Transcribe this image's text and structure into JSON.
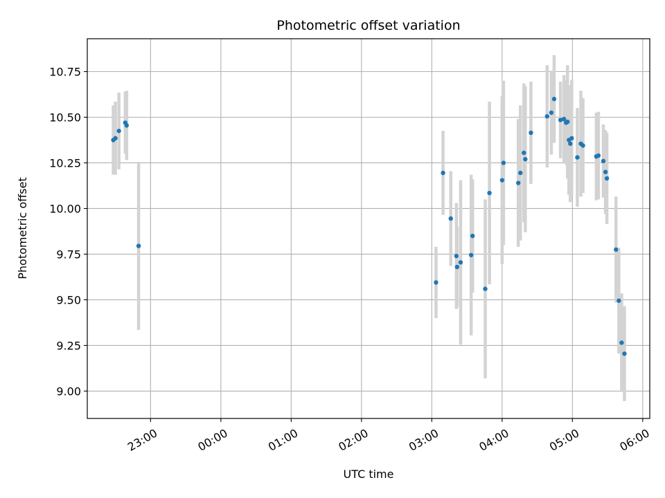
{
  "chart_data": {
    "type": "scatter",
    "title": "Photometric offset variation",
    "xlabel": "UTC time",
    "ylabel": "Photometric offset",
    "xlim_hours": [
      -1.9,
      6.1
    ],
    "ylim": [
      8.85,
      10.93
    ],
    "grid": true,
    "x_ticks": [
      {
        "value": -1.0,
        "label": "23:00"
      },
      {
        "value": 0.0,
        "label": "00:00"
      },
      {
        "value": 1.0,
        "label": "01:00"
      },
      {
        "value": 2.0,
        "label": "02:00"
      },
      {
        "value": 3.0,
        "label": "03:00"
      },
      {
        "value": 4.0,
        "label": "04:00"
      },
      {
        "value": 5.0,
        "label": "05:00"
      },
      {
        "value": 6.0,
        "label": "06:00"
      }
    ],
    "y_ticks": [
      {
        "value": 9.0,
        "label": "9.00"
      },
      {
        "value": 9.25,
        "label": "9.25"
      },
      {
        "value": 9.5,
        "label": "9.50"
      },
      {
        "value": 9.75,
        "label": "9.75"
      },
      {
        "value": 10.0,
        "label": "10.00"
      },
      {
        "value": 10.25,
        "label": "10.25"
      },
      {
        "value": 10.5,
        "label": "10.50"
      },
      {
        "value": 10.75,
        "label": "10.75"
      }
    ],
    "point_color": "#1f77b4",
    "errorbar_color": "#d3d3d3",
    "points": [
      {
        "x": -1.53,
        "y": 10.375,
        "err": 0.19
      },
      {
        "x": -1.5,
        "y": 10.385,
        "err": 0.2
      },
      {
        "x": -1.45,
        "y": 10.425,
        "err": 0.21
      },
      {
        "x": -1.36,
        "y": 10.47,
        "err": 0.17
      },
      {
        "x": -1.34,
        "y": 10.455,
        "err": 0.19
      },
      {
        "x": -1.17,
        "y": 9.795,
        "err": 0.46
      },
      {
        "x": 3.06,
        "y": 9.595,
        "err": 0.195
      },
      {
        "x": 3.16,
        "y": 10.195,
        "err": 0.23
      },
      {
        "x": 3.27,
        "y": 9.945,
        "err": 0.26
      },
      {
        "x": 3.35,
        "y": 9.74,
        "err": 0.29
      },
      {
        "x": 3.36,
        "y": 9.68,
        "err": 0.22
      },
      {
        "x": 3.41,
        "y": 9.705,
        "err": 0.45
      },
      {
        "x": 3.56,
        "y": 9.745,
        "err": 0.44
      },
      {
        "x": 3.58,
        "y": 9.85,
        "err": 0.31
      },
      {
        "x": 3.76,
        "y": 9.56,
        "err": 0.49
      },
      {
        "x": 3.82,
        "y": 10.085,
        "err": 0.5
      },
      {
        "x": 4.0,
        "y": 10.155,
        "err": 0.46
      },
      {
        "x": 4.02,
        "y": 10.25,
        "err": 0.45
      },
      {
        "x": 4.23,
        "y": 10.14,
        "err": 0.35
      },
      {
        "x": 4.26,
        "y": 10.195,
        "err": 0.37
      },
      {
        "x": 4.31,
        "y": 10.305,
        "err": 0.38
      },
      {
        "x": 4.33,
        "y": 10.27,
        "err": 0.4
      },
      {
        "x": 4.41,
        "y": 10.415,
        "err": 0.28
      },
      {
        "x": 4.64,
        "y": 10.505,
        "err": 0.28
      },
      {
        "x": 4.7,
        "y": 10.525,
        "err": 0.23
      },
      {
        "x": 4.74,
        "y": 10.6,
        "err": 0.24
      },
      {
        "x": 4.83,
        "y": 10.485,
        "err": 0.21
      },
      {
        "x": 4.88,
        "y": 10.49,
        "err": 0.24
      },
      {
        "x": 4.91,
        "y": 10.47,
        "err": 0.23
      },
      {
        "x": 4.93,
        "y": 10.475,
        "err": 0.31
      },
      {
        "x": 4.95,
        "y": 10.375,
        "err": 0.3
      },
      {
        "x": 4.97,
        "y": 10.355,
        "err": 0.32
      },
      {
        "x": 4.99,
        "y": 10.385,
        "err": 0.32
      },
      {
        "x": 5.07,
        "y": 10.28,
        "err": 0.27
      },
      {
        "x": 5.12,
        "y": 10.355,
        "err": 0.29
      },
      {
        "x": 5.15,
        "y": 10.345,
        "err": 0.26
      },
      {
        "x": 5.34,
        "y": 10.285,
        "err": 0.24
      },
      {
        "x": 5.37,
        "y": 10.29,
        "err": 0.24
      },
      {
        "x": 5.44,
        "y": 10.26,
        "err": 0.2
      },
      {
        "x": 5.47,
        "y": 10.2,
        "err": 0.23
      },
      {
        "x": 5.49,
        "y": 10.165,
        "err": 0.25
      },
      {
        "x": 5.62,
        "y": 9.775,
        "err": 0.29
      },
      {
        "x": 5.66,
        "y": 9.495,
        "err": 0.29
      },
      {
        "x": 5.7,
        "y": 9.265,
        "err": 0.27
      },
      {
        "x": 5.74,
        "y": 9.205,
        "err": 0.26
      }
    ]
  }
}
